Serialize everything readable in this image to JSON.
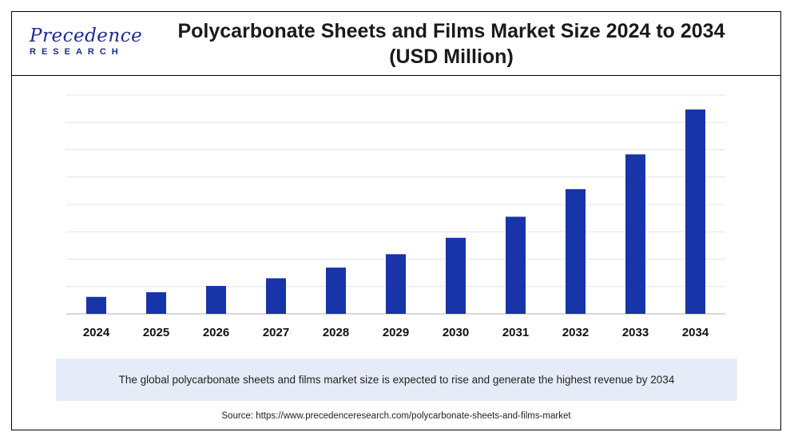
{
  "logo": {
    "name": "Precedence",
    "sub": "RESEARCH"
  },
  "header": {
    "title": "Polycarbonate Sheets and Films Market Size 2024 to 2034 (USD Million)"
  },
  "note": {
    "text": "The global polycarbonate sheets and films market size is expected to rise and generate the highest revenue by 2034"
  },
  "source": {
    "text": "Source: https://www.precedenceresearch.com/polycarbonate-sheets-and-films-market"
  },
  "colors": {
    "bar": "#1734a8",
    "grid": "#e4e4e4",
    "axis": "#bfbfbf"
  },
  "chart_data": {
    "type": "bar",
    "title": "Polycarbonate Sheets and Films Market Size 2024 to 2034 (USD Million)",
    "categories": [
      "2024",
      "2025",
      "2026",
      "2027",
      "2028",
      "2029",
      "2030",
      "2031",
      "2032",
      "2033",
      "2034"
    ],
    "series": [
      {
        "values": [
          6.2,
          7.9,
          10.2,
          13.0,
          16.9,
          21.8,
          27.8,
          35.5,
          45.6,
          58.3,
          74.7
        ]
      }
    ],
    "ylim": [
      0,
      80
    ],
    "grid": true,
    "y_tick_labels_shown": false,
    "legend": "none"
  }
}
